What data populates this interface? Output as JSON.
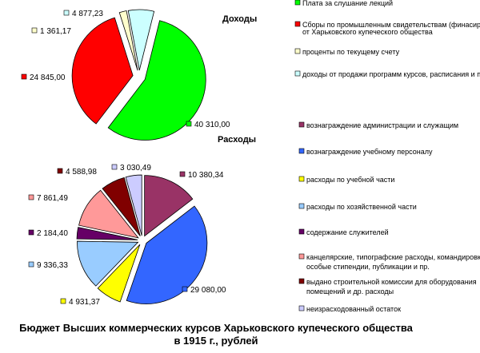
{
  "caption": {
    "line1": "Бюджет Высших коммерческих курсов Харьковского купеческого общества",
    "line2": "в 1915 г., рублей"
  },
  "chart_data": [
    {
      "type": "pie",
      "title": "Доходы",
      "slices": [
        {
          "label": "Плата за слушание лекций",
          "value": 40310.0,
          "display": "40 310,00",
          "color": "#00ff00"
        },
        {
          "label": "Сборы по промышленным свидетельствам (финасирование от Харьковского купеческого общества",
          "value": 24845.0,
          "display": "24 845,00",
          "color": "#ff0000"
        },
        {
          "label": "проценты по текущему счету",
          "value": 1361.17,
          "display": "1 361,17",
          "color": "#ffffcc"
        },
        {
          "label": "доходы от продажи программ курсов, расписания и пр.",
          "value": 4877.23,
          "display": "4 877,23",
          "color": "#ccffff"
        }
      ]
    },
    {
      "type": "pie",
      "title": "Расходы",
      "slices": [
        {
          "label": "вознаграждение администрации и служащим",
          "value": 10380.34,
          "display": "10 380,34",
          "color": "#993366"
        },
        {
          "label": "вознаграждение учебному персоналу",
          "value": 29080.0,
          "display": "29 080,00",
          "color": "#3366ff"
        },
        {
          "label": "расходы по учебной части",
          "value": 4931.37,
          "display": "4 931,37",
          "color": "#ffff00"
        },
        {
          "label": "расходы по хозяйственной части",
          "value": 9336.33,
          "display": "9 336,33",
          "color": "#99ccff"
        },
        {
          "label": "содержание служителей",
          "value": 2184.4,
          "display": "2 184,40",
          "color": "#660066"
        },
        {
          "label": "канцелярские, типографские расходы, командировки, особые стипендии, публикации и пр.",
          "value": 7861.49,
          "display": "7 861,49",
          "color": "#ff9999"
        },
        {
          "label": "выдано строительной комиссии для оборудования помещений и др. расходы",
          "value": 4588.98,
          "display": "4 588,98",
          "color": "#800000"
        },
        {
          "label": "неизрасходованный остаток",
          "value": 3030.49,
          "display": "3 030,49",
          "color": "#ccccff"
        }
      ]
    }
  ]
}
